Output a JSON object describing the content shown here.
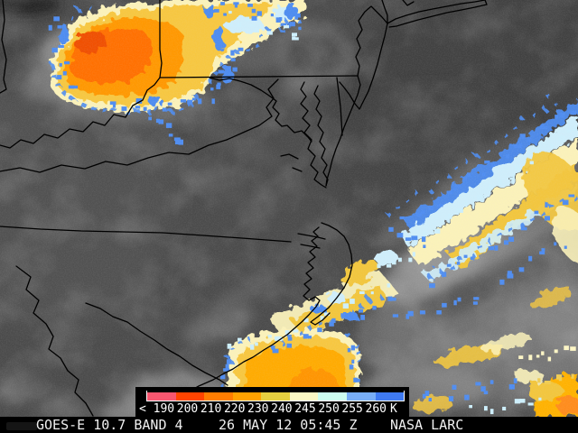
{
  "statusbar": {
    "product": "GOES-E 10.7 BAND 4",
    "timestamp": "26 MAY 12 05:45 Z",
    "credit": "NASA LARC"
  },
  "colorbar": {
    "labels": [
      "< 190",
      "200",
      "210",
      "220",
      "230",
      "240",
      "245",
      "250",
      "255",
      "260"
    ],
    "unit": "K",
    "segment_colors": [
      "#f8566f",
      "#ff4400",
      "#ff7d00",
      "#ffa200",
      "#e5cf40",
      "#fbf8c4",
      "#cdfdf0",
      "#78adf6",
      "#3f7af2"
    ],
    "axis_color": "#ffffff",
    "background": "#000000"
  },
  "map": {
    "border_color": "#000000",
    "land_gray": "#4b4b4b",
    "ocean_gray": "#414141",
    "cold_cloud_colors": {
      "deep_core": "#f04f00",
      "orange": "#ff8c00",
      "amber": "#ffab00",
      "gold": "#f2c63e",
      "pale_yellow": "#fbf2ba",
      "pale_cyan": "#cfeefb",
      "blue_fringe": "#4e8cf0"
    }
  }
}
